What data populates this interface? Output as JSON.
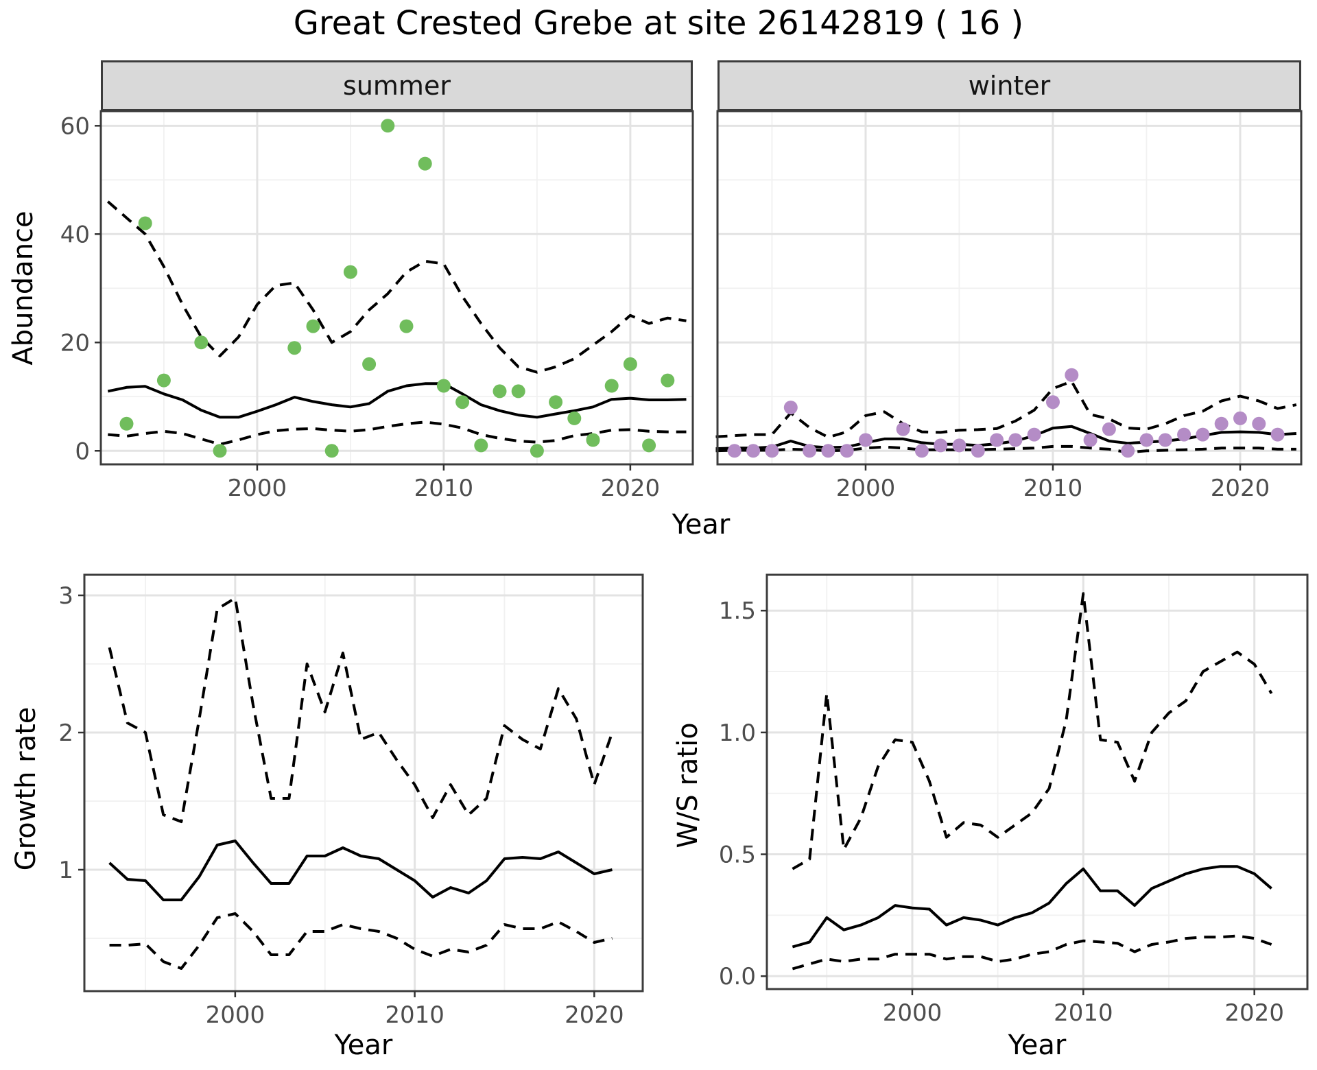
{
  "title": "Great Crested Grebe at site 26142819 ( 16 )",
  "facets": [
    {
      "label": "summer"
    },
    {
      "label": "winter"
    }
  ],
  "axis_labels": {
    "abundance": "Abundance",
    "year": "Year",
    "growth": "Growth rate",
    "ws": "W/S ratio"
  },
  "colors": {
    "summer_point": "#70bd5c",
    "winter_point": "#b48cc6",
    "line": "#000000",
    "grid_major": "#e3e3e3",
    "grid_minor": "#f1f1f1",
    "panel_border": "#3c3c3c",
    "tick_mark": "#333333",
    "tick_label": "#4d4d4d",
    "strip_bg": "#d9d9d9"
  },
  "chart_data": [
    {
      "id": "abundance-summer",
      "type": "scatter",
      "facet": "summer",
      "xlabel": "Year",
      "ylabel": "Abundance",
      "xlim": [
        1991.62,
        2023.35
      ],
      "ylim": [
        -2.5,
        62.7
      ],
      "xticks": [
        2000,
        2010,
        2020
      ],
      "xtick_labels": [
        "2000",
        "2010",
        "2020"
      ],
      "yticks": [
        0,
        20,
        40,
        60
      ],
      "ytick_labels": [
        "0",
        "20",
        "40",
        "60"
      ],
      "xminor": [
        1995,
        2005,
        2015
      ],
      "yminor": [
        10,
        30,
        50
      ],
      "points": {
        "color": "#70bd5c",
        "years": [
          1993,
          1994,
          1995,
          1997,
          1998,
          2002,
          2003,
          2004,
          2005,
          2006,
          2007,
          2008,
          2009,
          2010,
          2011,
          2012,
          2013,
          2014,
          2015,
          2016,
          2017,
          2018,
          2019,
          2020,
          2021,
          2022
        ],
        "values": [
          5,
          42,
          13,
          20,
          0,
          19,
          23,
          0,
          33,
          16,
          60,
          23,
          53,
          12,
          9,
          1,
          11,
          11,
          0,
          9,
          6,
          2,
          12,
          16,
          1,
          13
        ]
      },
      "series": [
        {
          "name": "mean",
          "style": "solid",
          "start_year": 1992,
          "values": [
            11,
            11.7,
            11.9,
            10.5,
            9.4,
            7.5,
            6.2,
            6.2,
            7.3,
            8.5,
            9.9,
            9.1,
            8.5,
            8.1,
            8.7,
            11,
            12,
            12.4,
            12.4,
            10.5,
            8.5,
            7.4,
            6.6,
            6.2,
            6.8,
            7.4,
            8.1,
            9.5,
            9.7,
            9.4,
            9.4,
            9.5
          ]
        },
        {
          "name": "upper-ci",
          "style": "dashed",
          "start_year": 1992,
          "values": [
            46,
            43,
            40,
            34,
            27,
            21,
            17.5,
            21,
            27,
            30.5,
            31,
            26,
            20,
            22,
            26,
            29,
            33,
            35,
            34.5,
            28.5,
            23.5,
            19,
            15.5,
            14.5,
            15.5,
            17,
            19.5,
            22,
            25,
            23.5,
            24.5,
            24
          ]
        },
        {
          "name": "lower-ci",
          "style": "dashed",
          "start_year": 1992,
          "values": [
            3,
            2.7,
            3.2,
            3.6,
            3.2,
            2.2,
            1.2,
            2,
            3,
            3.7,
            4,
            4.1,
            3.8,
            3.6,
            3.9,
            4.5,
            5,
            5.3,
            4.9,
            4.2,
            3,
            2.3,
            1.8,
            1.6,
            1.9,
            2.8,
            3.2,
            3.8,
            3.9,
            3.6,
            3.5,
            3.5
          ]
        }
      ]
    },
    {
      "id": "abundance-winter",
      "type": "scatter",
      "facet": "winter",
      "xlabel": "Year",
      "ylabel": "Abundance",
      "xlim": [
        1992.09,
        2023.26
      ],
      "ylim": [
        -2.5,
        62.7
      ],
      "xticks": [
        2000,
        2010,
        2020
      ],
      "xtick_labels": [
        "2000",
        "2010",
        "2020"
      ],
      "yticks": [
        0,
        20,
        40,
        60
      ],
      "ytick_labels": null,
      "xminor": [
        1995,
        2005,
        2015
      ],
      "yminor": [
        10,
        30,
        50
      ],
      "points": {
        "color": "#b48cc6",
        "years": [
          1993,
          1994,
          1995,
          1996,
          1997,
          1998,
          1999,
          2000,
          2002,
          2003,
          2004,
          2005,
          2006,
          2007,
          2008,
          2009,
          2010,
          2011,
          2012,
          2013,
          2014,
          2015,
          2016,
          2017,
          2018,
          2019,
          2020,
          2021,
          2022
        ],
        "values": [
          0,
          0,
          0,
          8,
          0,
          0,
          0,
          2,
          4,
          0,
          1,
          1,
          0,
          2,
          2,
          3,
          9,
          14,
          2,
          4,
          0,
          2,
          2,
          3,
          3,
          5,
          6,
          5,
          3
        ]
      },
      "series": [
        {
          "name": "mean",
          "style": "solid",
          "start_year": 1992,
          "values": [
            0.4,
            0.5,
            0.5,
            0.7,
            1.8,
            0.8,
            0.6,
            0.7,
            1.5,
            2.2,
            2.2,
            1.5,
            1.2,
            1.2,
            1.0,
            1.3,
            1.8,
            2.8,
            4.2,
            4.5,
            3.2,
            1.8,
            1.4,
            1.6,
            1.8,
            2.2,
            2.8,
            3.4,
            3.5,
            3.4,
            3.0,
            3.2
          ]
        },
        {
          "name": "upper-ci",
          "style": "dashed",
          "start_year": 1992,
          "values": [
            2.6,
            2.8,
            3.0,
            3.0,
            7.0,
            4.3,
            2.5,
            3.5,
            6.5,
            7.2,
            5.0,
            3.5,
            3.4,
            3.8,
            3.9,
            4.1,
            5.5,
            7.5,
            11.5,
            12.8,
            6.7,
            5.9,
            4.2,
            4.0,
            5.0,
            6.5,
            7.3,
            9.2,
            10.1,
            9.2,
            7.8,
            8.5
          ]
        },
        {
          "name": "lower-ci",
          "style": "dashed",
          "start_year": 1992,
          "values": [
            0,
            0.1,
            0.1,
            0.1,
            0.3,
            0.2,
            0,
            0.1,
            0.5,
            0.7,
            0.5,
            0.2,
            0.2,
            0.2,
            0.2,
            0.3,
            0.4,
            0.5,
            0.8,
            0.8,
            0.5,
            0.3,
            -0.3,
            0,
            0.1,
            0.2,
            0.3,
            0.5,
            0.5,
            0.5,
            0.3,
            0.3
          ]
        }
      ]
    },
    {
      "id": "growth-rate",
      "type": "line",
      "facet": null,
      "xlabel": "Year",
      "ylabel": "Growth rate",
      "xlim": [
        1991.6,
        2022.7
      ],
      "ylim": [
        0.115,
        3.15
      ],
      "xticks": [
        2000,
        2010,
        2020
      ],
      "xtick_labels": [
        "2000",
        "2010",
        "2020"
      ],
      "yticks": [
        1,
        2,
        3
      ],
      "ytick_labels": [
        "1",
        "2",
        "3"
      ],
      "xminor": [
        1995,
        2005,
        2015
      ],
      "yminor": [
        0.5,
        1.5,
        2.5
      ],
      "points": null,
      "series": [
        {
          "name": "mean",
          "style": "solid",
          "start_year": 1993,
          "values": [
            1.05,
            0.93,
            0.92,
            0.78,
            0.78,
            0.95,
            1.18,
            1.21,
            1.05,
            0.9,
            0.9,
            1.1,
            1.1,
            1.16,
            1.1,
            1.08,
            1.0,
            0.92,
            0.8,
            0.87,
            0.83,
            0.92,
            1.08,
            1.09,
            1.08,
            1.13,
            1.05,
            0.97,
            1.0
          ]
        },
        {
          "name": "upper-ci",
          "style": "dashed",
          "start_year": 1993,
          "values": [
            2.62,
            2.07,
            2.0,
            1.4,
            1.35,
            2.1,
            2.9,
            2.98,
            2.2,
            1.52,
            1.52,
            2.5,
            2.15,
            2.58,
            1.95,
            2.0,
            1.8,
            1.62,
            1.38,
            1.62,
            1.4,
            1.52,
            2.05,
            1.95,
            1.88,
            2.32,
            2.1,
            1.62,
            2.0
          ]
        },
        {
          "name": "lower-ci",
          "style": "dashed",
          "start_year": 1993,
          "values": [
            0.45,
            0.45,
            0.46,
            0.33,
            0.28,
            0.45,
            0.65,
            0.68,
            0.55,
            0.38,
            0.38,
            0.55,
            0.55,
            0.6,
            0.57,
            0.55,
            0.5,
            0.42,
            0.37,
            0.42,
            0.4,
            0.45,
            0.6,
            0.57,
            0.57,
            0.62,
            0.55,
            0.47,
            0.5
          ]
        }
      ]
    },
    {
      "id": "ws-ratio",
      "type": "line",
      "facet": null,
      "xlabel": "Year",
      "ylabel": "W/S ratio",
      "xlim": [
        1991.5,
        2023.1
      ],
      "ylim": [
        -0.053,
        1.647
      ],
      "xticks": [
        2000,
        2010,
        2020
      ],
      "xtick_labels": [
        "2000",
        "2010",
        "2020"
      ],
      "yticks": [
        0.0,
        0.5,
        1.0,
        1.5
      ],
      "ytick_labels": [
        "0.0",
        "0.5",
        "1.0",
        "1.5"
      ],
      "xminor": [
        1995,
        2005,
        2015
      ],
      "yminor": [
        0.25,
        0.75,
        1.25
      ],
      "points": null,
      "series": [
        {
          "name": "mean",
          "style": "solid",
          "start_year": 1993,
          "values": [
            0.12,
            0.14,
            0.24,
            0.19,
            0.21,
            0.24,
            0.29,
            0.28,
            0.275,
            0.21,
            0.24,
            0.23,
            0.21,
            0.24,
            0.26,
            0.3,
            0.38,
            0.44,
            0.35,
            0.35,
            0.29,
            0.36,
            0.39,
            0.42,
            0.44,
            0.45,
            0.45,
            0.42,
            0.36
          ]
        },
        {
          "name": "upper-ci",
          "style": "dashed",
          "start_year": 1993,
          "values": [
            0.44,
            0.48,
            1.16,
            0.52,
            0.65,
            0.86,
            0.97,
            0.96,
            0.8,
            0.57,
            0.63,
            0.62,
            0.57,
            0.62,
            0.67,
            0.77,
            1.05,
            1.57,
            0.97,
            0.96,
            0.8,
            1.0,
            1.08,
            1.13,
            1.25,
            1.29,
            1.33,
            1.28,
            1.16
          ]
        },
        {
          "name": "lower-ci",
          "style": "dashed",
          "start_year": 1993,
          "values": [
            0.03,
            0.05,
            0.07,
            0.06,
            0.07,
            0.07,
            0.09,
            0.09,
            0.09,
            0.07,
            0.08,
            0.08,
            0.06,
            0.07,
            0.09,
            0.1,
            0.13,
            0.145,
            0.14,
            0.135,
            0.1,
            0.13,
            0.14,
            0.155,
            0.16,
            0.16,
            0.165,
            0.155,
            0.13
          ]
        }
      ]
    }
  ]
}
